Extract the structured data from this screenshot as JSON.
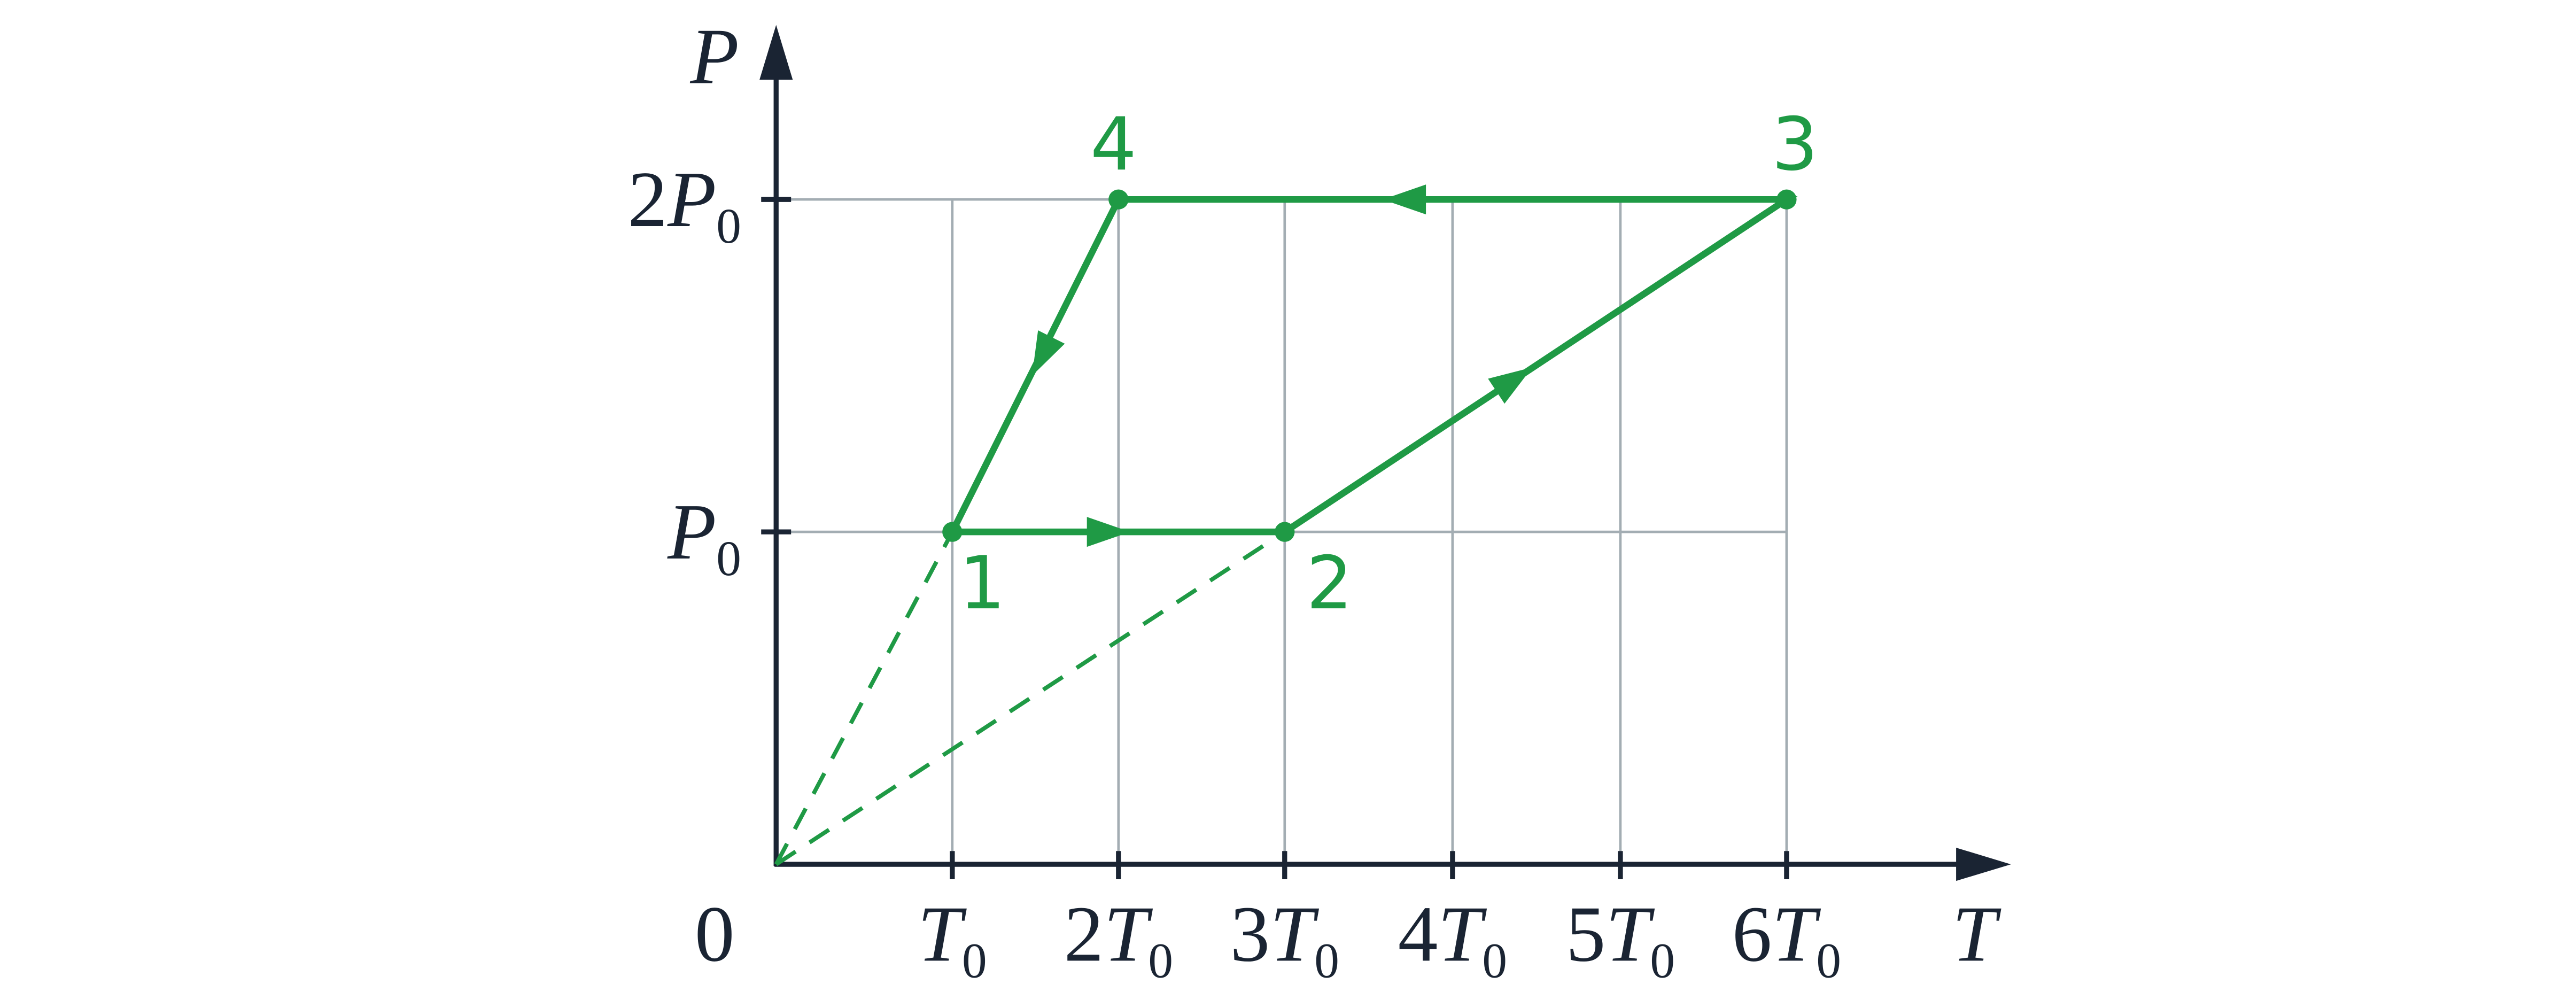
{
  "axes": {
    "y_label": "P",
    "x_label": "T",
    "origin": "0"
  },
  "x_ticks": [
    {
      "symbol": "T",
      "subscript": "0"
    },
    {
      "coefficient": "2",
      "symbol": "T",
      "subscript": "0"
    },
    {
      "coefficient": "3",
      "symbol": "T",
      "subscript": "0"
    },
    {
      "coefficient": "4",
      "symbol": "T",
      "subscript": "0"
    },
    {
      "coefficient": "5",
      "symbol": "T",
      "subscript": "0"
    },
    {
      "coefficient": "6",
      "symbol": "T",
      "subscript": "0"
    }
  ],
  "y_ticks": [
    {
      "symbol": "P",
      "subscript": "0"
    },
    {
      "coefficient": "2",
      "symbol": "P",
      "subscript": "0"
    }
  ],
  "points": [
    {
      "label": "1"
    },
    {
      "label": "2"
    },
    {
      "label": "3"
    },
    {
      "label": "4"
    }
  ]
}
